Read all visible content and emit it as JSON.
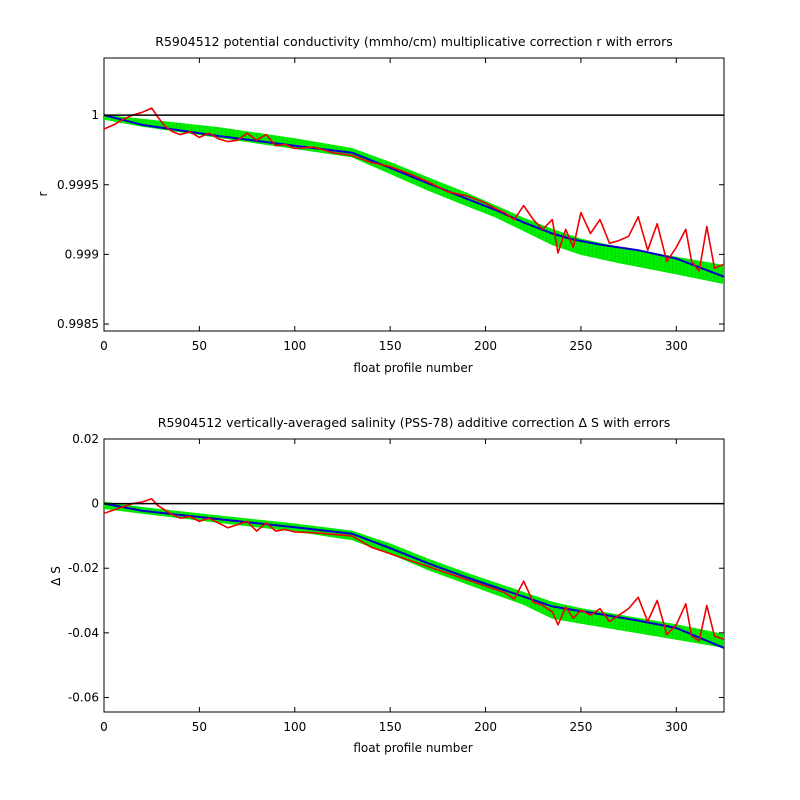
{
  "chart_data": [
    {
      "type": "line",
      "title": "R5904512 potential conductivity (mmho/cm) multiplicative correction r with errors",
      "xlabel": "float profile number",
      "ylabel": "r",
      "xlim": [
        0,
        325
      ],
      "ylim": [
        0.99845,
        1.00041
      ],
      "xticks": [
        0,
        50,
        100,
        150,
        200,
        250,
        300
      ],
      "xtick_labels": [
        "0",
        "50",
        "100",
        "150",
        "200",
        "250",
        "300"
      ],
      "yticks": [
        0.9985,
        0.999,
        0.9995,
        1
      ],
      "ytick_labels": [
        "0.9985",
        "0.999",
        "0.9995",
        "1"
      ],
      "reference_line": 1,
      "grid": false,
      "colors": {
        "band": "#00ee00",
        "fit": "#0000cc",
        "raw": "#ee0000",
        "reference": "#000000"
      },
      "series": [
        {
          "role": "fit",
          "x": [
            0,
            20,
            60,
            100,
            130,
            150,
            170,
            190,
            205,
            220,
            235,
            245,
            260,
            280,
            300,
            325
          ],
          "values": [
            1.0,
            0.99993,
            0.99985,
            0.99978,
            0.99973,
            0.99962,
            0.99951,
            0.9994,
            0.99932,
            0.99923,
            0.99915,
            0.99911,
            0.99907,
            0.99903,
            0.99897,
            0.99884
          ]
        },
        {
          "role": "error_band_upper",
          "x": [
            0,
            20,
            60,
            100,
            130,
            150,
            170,
            190,
            205,
            220,
            235,
            250,
            270,
            300,
            325
          ],
          "values": [
            1.0,
            0.99997,
            0.99991,
            0.99983,
            0.99976,
            0.99966,
            0.99955,
            0.99944,
            0.99935,
            0.99926,
            0.99918,
            0.99911,
            0.99905,
            0.99898,
            0.99892
          ]
        },
        {
          "role": "error_band_lower",
          "x": [
            0,
            20,
            60,
            100,
            130,
            150,
            170,
            190,
            205,
            220,
            235,
            250,
            270,
            300,
            325
          ],
          "values": [
            0.99997,
            0.99992,
            0.99984,
            0.99976,
            0.9997,
            0.99958,
            0.99946,
            0.99935,
            0.99927,
            0.99917,
            0.99907,
            0.999,
            0.99894,
            0.99886,
            0.99879
          ]
        },
        {
          "role": "raw",
          "x": [
            0,
            5,
            10,
            15,
            20,
            25,
            28,
            32,
            36,
            40,
            45,
            50,
            55,
            60,
            65,
            70,
            75,
            80,
            85,
            90,
            95,
            100,
            110,
            120,
            130,
            140,
            150,
            160,
            170,
            180,
            190,
            200,
            205,
            210,
            215,
            220,
            225,
            230,
            235,
            238,
            242,
            246,
            250,
            255,
            260,
            265,
            270,
            275,
            280,
            285,
            290,
            295,
            300,
            305,
            308,
            312,
            316,
            320,
            325
          ],
          "values": [
            0.9999,
            0.99993,
            0.99997,
            1.0,
            1.00002,
            1.00005,
            0.99999,
            0.99992,
            0.99988,
            0.99986,
            0.99988,
            0.99984,
            0.99987,
            0.99983,
            0.99981,
            0.99982,
            0.99987,
            0.99982,
            0.99986,
            0.99978,
            0.99979,
            0.99976,
            0.99977,
            0.99973,
            0.99971,
            0.99966,
            0.99963,
            0.99958,
            0.99952,
            0.99945,
            0.99942,
            0.99937,
            0.99933,
            0.9993,
            0.99925,
            0.99935,
            0.99925,
            0.99918,
            0.99925,
            0.99901,
            0.99918,
            0.99905,
            0.9993,
            0.99915,
            0.99925,
            0.99908,
            0.9991,
            0.99913,
            0.99927,
            0.99903,
            0.99922,
            0.99895,
            0.99905,
            0.99918,
            0.99895,
            0.99888,
            0.9992,
            0.9989,
            0.99893
          ]
        }
      ]
    },
    {
      "type": "line",
      "title": "R5904512 vertically-averaged salinity (PSS-78) additive correction Δ S with errors",
      "xlabel": "float profile number",
      "ylabel": "Δ S",
      "xlim": [
        0,
        325
      ],
      "ylim": [
        -0.0645,
        0.02
      ],
      "xticks": [
        0,
        50,
        100,
        150,
        200,
        250,
        300
      ],
      "xtick_labels": [
        "0",
        "50",
        "100",
        "150",
        "200",
        "250",
        "300"
      ],
      "yticks": [
        -0.06,
        -0.04,
        -0.02,
        0,
        0.02
      ],
      "ytick_labels": [
        "-0.06",
        "-0.04",
        "-0.02",
        "0",
        "0.02"
      ],
      "reference_line": 0,
      "grid": false,
      "colors": {
        "band": "#00ee00",
        "fit": "#0000cc",
        "raw": "#ee0000",
        "reference": "#000000"
      },
      "series": [
        {
          "role": "fit",
          "x": [
            0,
            20,
            60,
            100,
            130,
            150,
            170,
            190,
            205,
            220,
            235,
            245,
            260,
            280,
            300,
            325
          ],
          "values": [
            0.0,
            -0.0022,
            -0.0048,
            -0.0073,
            -0.0093,
            -0.0138,
            -0.0185,
            -0.0228,
            -0.0258,
            -0.0288,
            -0.0318,
            -0.0328,
            -0.0342,
            -0.0362,
            -0.0385,
            -0.0447
          ]
        },
        {
          "role": "error_band_upper",
          "x": [
            0,
            20,
            60,
            100,
            130,
            150,
            170,
            190,
            205,
            220,
            235,
            250,
            270,
            300,
            325
          ],
          "values": [
            0.0005,
            -0.0012,
            -0.0038,
            -0.0063,
            -0.0085,
            -0.0125,
            -0.0172,
            -0.0215,
            -0.0245,
            -0.0275,
            -0.0305,
            -0.0325,
            -0.0345,
            -0.0375,
            -0.0405
          ]
        },
        {
          "role": "error_band_lower",
          "x": [
            0,
            20,
            60,
            100,
            130,
            150,
            170,
            190,
            205,
            220,
            235,
            250,
            270,
            300,
            325
          ],
          "values": [
            -0.0015,
            -0.003,
            -0.0058,
            -0.0085,
            -0.0112,
            -0.0155,
            -0.0205,
            -0.0248,
            -0.028,
            -0.0312,
            -0.0355,
            -0.037,
            -0.039,
            -0.042,
            -0.0445
          ]
        },
        {
          "role": "raw",
          "x": [
            0,
            5,
            10,
            15,
            20,
            25,
            28,
            32,
            36,
            40,
            45,
            50,
            55,
            60,
            65,
            70,
            75,
            80,
            85,
            90,
            95,
            100,
            110,
            120,
            130,
            140,
            150,
            160,
            170,
            180,
            190,
            200,
            205,
            210,
            215,
            220,
            225,
            230,
            235,
            238,
            242,
            246,
            250,
            255,
            260,
            265,
            270,
            275,
            280,
            285,
            290,
            295,
            300,
            305,
            308,
            312,
            316,
            320,
            325
          ],
          "values": [
            -0.003,
            -0.002,
            -0.001,
            0.0,
            0.0005,
            0.0015,
            -0.0005,
            -0.002,
            -0.0035,
            -0.0045,
            -0.004,
            -0.0055,
            -0.0045,
            -0.006,
            -0.0075,
            -0.0065,
            -0.0055,
            -0.0085,
            -0.006,
            -0.0085,
            -0.008,
            -0.0088,
            -0.009,
            -0.0095,
            -0.01,
            -0.0135,
            -0.0155,
            -0.0175,
            -0.0195,
            -0.0215,
            -0.0235,
            -0.0255,
            -0.0265,
            -0.0275,
            -0.0295,
            -0.024,
            -0.0305,
            -0.0315,
            -0.0335,
            -0.0375,
            -0.032,
            -0.0355,
            -0.033,
            -0.0345,
            -0.0325,
            -0.0365,
            -0.0345,
            -0.0325,
            -0.029,
            -0.0365,
            -0.03,
            -0.0405,
            -0.0375,
            -0.031,
            -0.041,
            -0.0425,
            -0.0315,
            -0.041,
            -0.042
          ]
        }
      ]
    }
  ]
}
